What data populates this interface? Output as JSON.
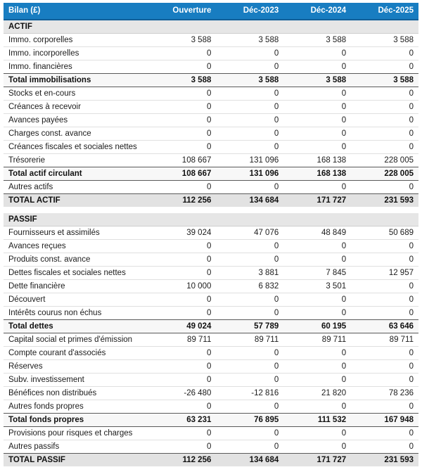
{
  "table": {
    "title": "Bilan (£)",
    "columns": [
      "Ouverture",
      "Déc-2023",
      "Déc-2024",
      "Déc-2025"
    ],
    "sections": [
      {
        "name": "ACTIF",
        "rows": [
          {
            "label": "Immo. corporelles",
            "values": [
              "3 588",
              "3 588",
              "3 588",
              "3 588"
            ],
            "style": "normal"
          },
          {
            "label": "Immo. incorporelles",
            "values": [
              "0",
              "0",
              "0",
              "0"
            ],
            "style": "normal"
          },
          {
            "label": "Immo. financières",
            "values": [
              "0",
              "0",
              "0",
              "0"
            ],
            "style": "normal"
          },
          {
            "label": "Total immobilisations",
            "values": [
              "3 588",
              "3 588",
              "3 588",
              "3 588"
            ],
            "style": "subtotal"
          },
          {
            "label": "Stocks et en-cours",
            "values": [
              "0",
              "0",
              "0",
              "0"
            ],
            "style": "normal"
          },
          {
            "label": "Créances à recevoir",
            "values": [
              "0",
              "0",
              "0",
              "0"
            ],
            "style": "normal"
          },
          {
            "label": "Avances payées",
            "values": [
              "0",
              "0",
              "0",
              "0"
            ],
            "style": "normal"
          },
          {
            "label": "Charges const. avance",
            "values": [
              "0",
              "0",
              "0",
              "0"
            ],
            "style": "normal"
          },
          {
            "label": "Créances fiscales et sociales nettes",
            "values": [
              "0",
              "0",
              "0",
              "0"
            ],
            "style": "normal"
          },
          {
            "label": "Trésorerie",
            "values": [
              "108 667",
              "131 096",
              "168 138",
              "228 005"
            ],
            "style": "normal"
          },
          {
            "label": "Total actif circulant",
            "values": [
              "108 667",
              "131 096",
              "168 138",
              "228 005"
            ],
            "style": "subtotal"
          },
          {
            "label": "Autres actifs",
            "values": [
              "0",
              "0",
              "0",
              "0"
            ],
            "style": "normal"
          },
          {
            "label": "TOTAL ACTIF",
            "values": [
              "112 256",
              "134 684",
              "171 727",
              "231 593"
            ],
            "style": "grand-total"
          }
        ]
      },
      {
        "name": "PASSIF",
        "rows": [
          {
            "label": "Fournisseurs et assimilés",
            "values": [
              "39 024",
              "47 076",
              "48 849",
              "50 689"
            ],
            "style": "normal"
          },
          {
            "label": "Avances reçues",
            "values": [
              "0",
              "0",
              "0",
              "0"
            ],
            "style": "normal"
          },
          {
            "label": "Produits const. avance",
            "values": [
              "0",
              "0",
              "0",
              "0"
            ],
            "style": "normal"
          },
          {
            "label": "Dettes fiscales et sociales nettes",
            "values": [
              "0",
              "3 881",
              "7 845",
              "12 957"
            ],
            "style": "normal"
          },
          {
            "label": "Dette financière",
            "values": [
              "10 000",
              "6 832",
              "3 501",
              "0"
            ],
            "style": "normal"
          },
          {
            "label": "Découvert",
            "values": [
              "0",
              "0",
              "0",
              "0"
            ],
            "style": "normal"
          },
          {
            "label": "Intérêts courus non échus",
            "values": [
              "0",
              "0",
              "0",
              "0"
            ],
            "style": "normal"
          },
          {
            "label": "Total dettes",
            "values": [
              "49 024",
              "57 789",
              "60 195",
              "63 646"
            ],
            "style": "subtotal"
          },
          {
            "label": "Capital social et primes d'émission",
            "values": [
              "89 711",
              "89 711",
              "89 711",
              "89 711"
            ],
            "style": "normal"
          },
          {
            "label": "Compte courant d'associés",
            "values": [
              "0",
              "0",
              "0",
              "0"
            ],
            "style": "normal"
          },
          {
            "label": "Réserves",
            "values": [
              "0",
              "0",
              "0",
              "0"
            ],
            "style": "normal"
          },
          {
            "label": "Subv. investissement",
            "values": [
              "0",
              "0",
              "0",
              "0"
            ],
            "style": "normal"
          },
          {
            "label": "Bénéfices non distribués",
            "values": [
              "-26 480",
              "-12 816",
              "21 820",
              "78 236"
            ],
            "style": "normal"
          },
          {
            "label": "Autres fonds propres",
            "values": [
              "0",
              "0",
              "0",
              "0"
            ],
            "style": "normal"
          },
          {
            "label": "Total fonds propres",
            "values": [
              "63 231",
              "76 895",
              "111 532",
              "167 948"
            ],
            "style": "subtotal"
          },
          {
            "label": "Provisions pour risques et charges",
            "values": [
              "0",
              "0",
              "0",
              "0"
            ],
            "style": "normal"
          },
          {
            "label": "Autres passifs",
            "values": [
              "0",
              "0",
              "0",
              "0"
            ],
            "style": "normal"
          },
          {
            "label": "TOTAL PASSIF",
            "values": [
              "112 256",
              "134 684",
              "171 727",
              "231 593"
            ],
            "style": "grand-total"
          }
        ]
      }
    ]
  },
  "colors": {
    "header_bg": "#187dc1",
    "header_border": "#105f98",
    "header_text": "#ffffff",
    "section_bg": "#e6e6e6",
    "subtotal_bg": "#f7f7f7",
    "grand_total_bg": "#e2e2e2",
    "dark_rule": "#5a5a5a",
    "row_rule": "#e0e0e0"
  },
  "chart_data": {
    "type": "table",
    "title": "Bilan (£)",
    "columns": [
      "Ouverture",
      "Déc-2023",
      "Déc-2024",
      "Déc-2025"
    ],
    "sections": [
      {
        "name": "ACTIF",
        "rows": [
          [
            "Immo. corporelles",
            3588,
            3588,
            3588,
            3588
          ],
          [
            "Immo. incorporelles",
            0,
            0,
            0,
            0
          ],
          [
            "Immo. financières",
            0,
            0,
            0,
            0
          ],
          [
            "Total immobilisations",
            3588,
            3588,
            3588,
            3588
          ],
          [
            "Stocks et en-cours",
            0,
            0,
            0,
            0
          ],
          [
            "Créances à recevoir",
            0,
            0,
            0,
            0
          ],
          [
            "Avances payées",
            0,
            0,
            0,
            0
          ],
          [
            "Charges const. avance",
            0,
            0,
            0,
            0
          ],
          [
            "Créances fiscales et sociales nettes",
            0,
            0,
            0,
            0
          ],
          [
            "Trésorerie",
            108667,
            131096,
            168138,
            228005
          ],
          [
            "Total actif circulant",
            108667,
            131096,
            168138,
            228005
          ],
          [
            "Autres actifs",
            0,
            0,
            0,
            0
          ],
          [
            "TOTAL ACTIF",
            112256,
            134684,
            171727,
            231593
          ]
        ]
      },
      {
        "name": "PASSIF",
        "rows": [
          [
            "Fournisseurs et assimilés",
            39024,
            47076,
            48849,
            50689
          ],
          [
            "Avances reçues",
            0,
            0,
            0,
            0
          ],
          [
            "Produits const. avance",
            0,
            0,
            0,
            0
          ],
          [
            "Dettes fiscales et sociales nettes",
            0,
            3881,
            7845,
            12957
          ],
          [
            "Dette financière",
            10000,
            6832,
            3501,
            0
          ],
          [
            "Découvert",
            0,
            0,
            0,
            0
          ],
          [
            "Intérêts courus non échus",
            0,
            0,
            0,
            0
          ],
          [
            "Total dettes",
            49024,
            57789,
            60195,
            63646
          ],
          [
            "Capital social et primes d'émission",
            89711,
            89711,
            89711,
            89711
          ],
          [
            "Compte courant d'associés",
            0,
            0,
            0,
            0
          ],
          [
            "Réserves",
            0,
            0,
            0,
            0
          ],
          [
            "Subv. investissement",
            0,
            0,
            0,
            0
          ],
          [
            "Bénéfices non distribués",
            -26480,
            -12816,
            21820,
            78236
          ],
          [
            "Autres fonds propres",
            0,
            0,
            0,
            0
          ],
          [
            "Total fonds propres",
            63231,
            76895,
            111532,
            167948
          ],
          [
            "Provisions pour risques et charges",
            0,
            0,
            0,
            0
          ],
          [
            "Autres passifs",
            0,
            0,
            0,
            0
          ],
          [
            "TOTAL PASSIF",
            112256,
            134684,
            171727,
            231593
          ]
        ]
      }
    ]
  }
}
